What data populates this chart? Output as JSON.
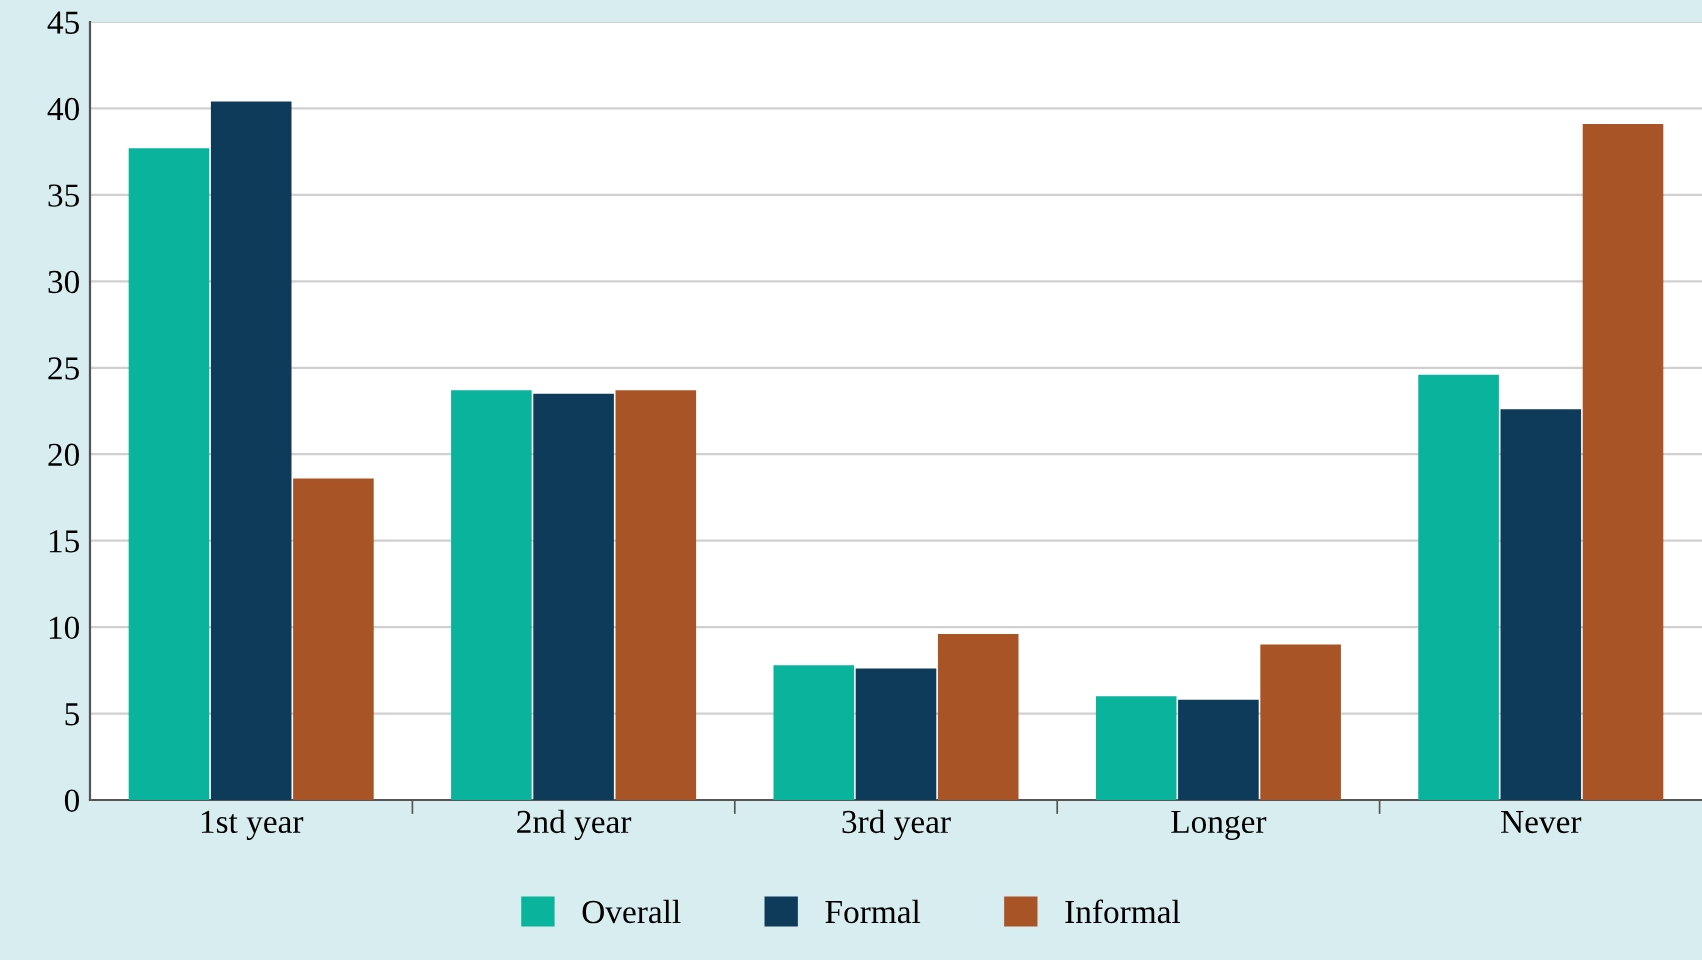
{
  "chart_data": {
    "type": "bar",
    "categories": [
      "1st year",
      "2nd year",
      "3rd year",
      "Longer",
      "Never"
    ],
    "series": [
      {
        "name": "Overall",
        "color": "#0ab39c",
        "values": [
          37.7,
          23.7,
          7.8,
          6.0,
          24.6
        ]
      },
      {
        "name": "Formal",
        "color": "#0e3b5a",
        "values": [
          40.4,
          23.5,
          7.6,
          5.8,
          22.6
        ]
      },
      {
        "name": "Informal",
        "color": "#a85426",
        "values": [
          18.6,
          23.7,
          9.6,
          9.0,
          39.1
        ]
      }
    ],
    "ylim": [
      0,
      45
    ],
    "yticks": [
      0,
      5,
      10,
      15,
      20,
      25,
      30,
      35,
      40,
      45
    ],
    "grid": "y",
    "legend": "bottom"
  }
}
